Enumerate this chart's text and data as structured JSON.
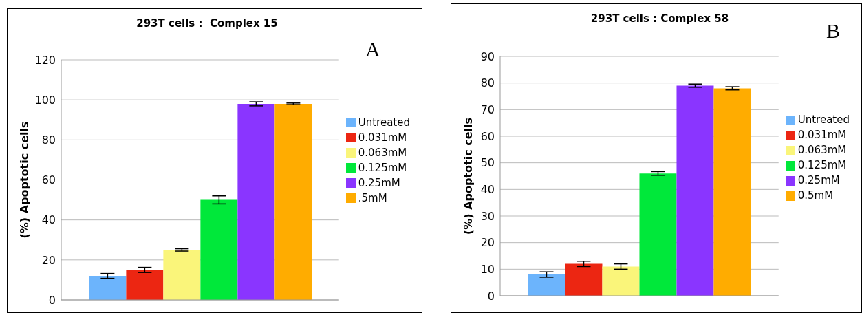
{
  "chart_data": [
    {
      "type": "bar",
      "title": "293T cells :  Complex 15",
      "ylabel": "(%) Apoptotic cells",
      "categories": [
        null
      ],
      "ylim": [
        0,
        120
      ],
      "yticks": [
        0,
        20,
        40,
        60,
        80,
        100,
        120
      ],
      "grid": "y",
      "legend": "right",
      "annotations": [
        "A"
      ],
      "series": [
        {
          "name": "Untreated",
          "color": "#6cb4fc",
          "values": [
            12
          ],
          "errors": [
            1.2
          ]
        },
        {
          "name": "0.031mM",
          "color": "#ec2612",
          "values": [
            15
          ],
          "errors": [
            1.3
          ]
        },
        {
          "name": "0.063mM",
          "color": "#faf57a",
          "values": [
            25
          ],
          "errors": [
            0.6
          ]
        },
        {
          "name": "0.125mM",
          "color": "#00e83a",
          "values": [
            50
          ],
          "errors": [
            2
          ]
        },
        {
          "name": "0.25mM",
          "color": "#8a35ff",
          "values": [
            98
          ],
          "errors": [
            1
          ]
        },
        {
          "name": ".5mM",
          "color": "#ffac00",
          "values": [
            98
          ],
          "errors": [
            0.4
          ]
        }
      ]
    },
    {
      "type": "bar",
      "title": "293T cells : Complex 58",
      "ylabel": "(%) Apoptotic cells",
      "categories": [
        null
      ],
      "ylim": [
        0,
        90
      ],
      "yticks": [
        0,
        10,
        20,
        30,
        40,
        50,
        60,
        70,
        80,
        90
      ],
      "grid": "y",
      "legend": "right",
      "annotations": [
        "B"
      ],
      "series": [
        {
          "name": "Untreated",
          "color": "#6cb4fc",
          "values": [
            8
          ],
          "errors": [
            1
          ]
        },
        {
          "name": "0.031mM",
          "color": "#ec2612",
          "values": [
            12
          ],
          "errors": [
            1
          ]
        },
        {
          "name": "0.063mM",
          "color": "#faf57a",
          "values": [
            11
          ],
          "errors": [
            1
          ]
        },
        {
          "name": "0.125mM",
          "color": "#00e83a",
          "values": [
            46
          ],
          "errors": [
            0.7
          ]
        },
        {
          "name": "0.25mM",
          "color": "#8a35ff",
          "values": [
            79
          ],
          "errors": [
            0.6
          ]
        },
        {
          "name": "0.5mM",
          "color": "#ffac00",
          "values": [
            78
          ],
          "errors": [
            0.6
          ]
        }
      ]
    }
  ]
}
